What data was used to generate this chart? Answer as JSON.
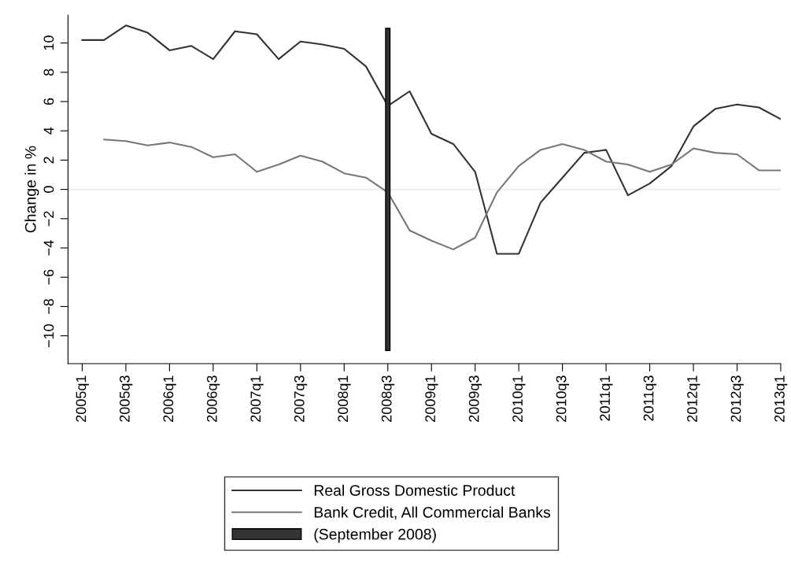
{
  "chart_data": {
    "type": "line",
    "ylabel": "Change in %",
    "categories": [
      "2005q1",
      null,
      "2005q3",
      null,
      "2006q1",
      null,
      "2006q3",
      null,
      "2007q1",
      null,
      "2007q3",
      null,
      "2008q1",
      null,
      "2008q3",
      null,
      "2009q1",
      null,
      "2009q3",
      null,
      "2010q1",
      null,
      "2010q3",
      null,
      "2011q1",
      null,
      "2011q3",
      null,
      "2012q1",
      null,
      "2012q3",
      null,
      "2013q1"
    ],
    "series": [
      {
        "name": "Real Gross Domestic Product",
        "color": "#333333",
        "values": [
          10.2,
          10.2,
          11.2,
          10.7,
          9.5,
          9.8,
          8.9,
          10.8,
          10.6,
          8.9,
          10.1,
          9.9,
          9.6,
          8.4,
          5.7,
          6.7,
          3.8,
          3.1,
          1.2,
          -4.4,
          -4.4,
          -0.9,
          0.8,
          2.5,
          2.7,
          -0.4,
          0.4,
          1.6,
          4.3,
          5.5,
          5.8,
          5.6,
          4.8
        ]
      },
      {
        "name": "Bank Credit, All Commercial Banks",
        "color": "#777777",
        "values": [
          null,
          3.4,
          3.3,
          3.0,
          3.2,
          2.9,
          2.2,
          2.4,
          1.2,
          1.7,
          2.3,
          1.9,
          1.1,
          0.8,
          -0.2,
          -2.8,
          -3.5,
          -4.1,
          -3.3,
          -0.2,
          1.6,
          2.7,
          3.1,
          2.7,
          1.9,
          1.7,
          1.2,
          1.7,
          2.8,
          2.5,
          2.4,
          1.3,
          1.3
        ]
      },
      {
        "name": "(September 2008)",
        "type": "bar",
        "color": "#333333",
        "values": [
          null,
          null,
          null,
          null,
          null,
          null,
          null,
          null,
          null,
          null,
          null,
          null,
          null,
          null,
          22,
          null,
          null,
          null,
          null,
          null,
          null,
          null,
          null,
          null,
          null,
          null,
          null,
          null,
          null,
          null,
          null,
          null,
          null
        ],
        "base": [
          null,
          null,
          null,
          null,
          null,
          null,
          null,
          null,
          null,
          null,
          null,
          null,
          null,
          null,
          -11,
          null,
          null,
          null,
          null,
          null,
          null,
          null,
          null,
          null,
          null,
          null,
          null,
          null,
          null,
          null,
          null,
          null,
          null
        ]
      }
    ],
    "ylim": [
      -11.9,
      11.9
    ],
    "yticks": [
      {
        "value": -10,
        "label": "−10"
      },
      {
        "value": -8,
        "label": "−8"
      },
      {
        "value": -6,
        "label": "−6"
      },
      {
        "value": -4,
        "label": "−4"
      },
      {
        "value": -2,
        "label": "−2"
      },
      0,
      2,
      4,
      6,
      8,
      10
    ],
    "ref_lines": [
      {
        "axis": "y",
        "value": 0,
        "color": "#e6eef0"
      }
    ],
    "grid": false,
    "legend": "bottom",
    "marker": "none",
    "line_style": "solid"
  }
}
